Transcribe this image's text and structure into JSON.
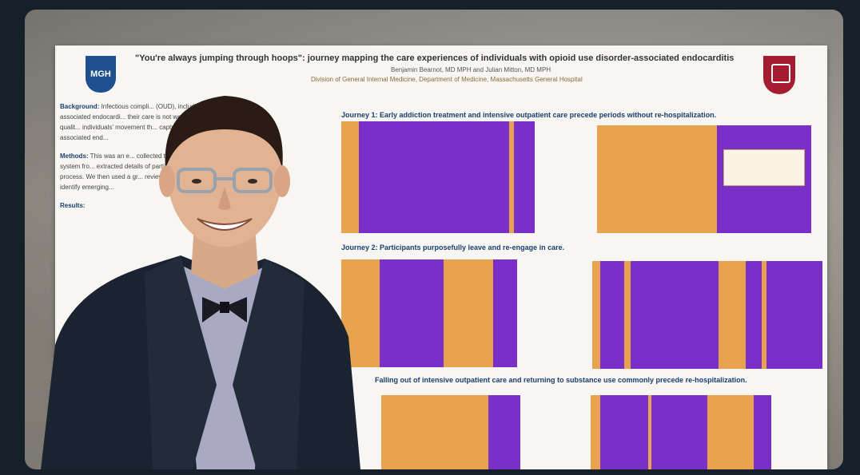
{
  "poster": {
    "title": "\"You're always jumping through hoops\": journey mapping the care experiences of individuals with opioid use disorder-associated endocarditis",
    "authors": "Benjamin Bearnot, MD MPH and Julian Mitton, MD MPH",
    "affiliation": "Division of General Internal Medicine, Department of Medicine, Massachusetts General Hospital",
    "logo_left": "MGH",
    "sections": [
      "Journey 1: Early addiction treatment and intensive outpatient care precede periods without re-hospitalization.",
      "Journey 2: Participants purposefully leave and re-engage in care.",
      "Falling out of intensive outpatient care and returning to substance use commonly precede re-hospitalization."
    ],
    "left_column": {
      "background_head": "Background:",
      "background_text": "Infectious compli... (OUD), including endocardi... OUD-associated endocardi... their care is not well unde... journey mapping, a qualit... individuals' movement th... capture common trajecto... with OUD-associated end...",
      "methods_head": "Methods:",
      "methods_text": "This was an e... collected through intervi... a single health system fro... extracted details of partic... were displayed and modifi... process. We then used a gr... reviewing the maps to ide... care and identify emerging...",
      "results_head": "Results:"
    }
  },
  "colors": {
    "purple": "#7a2fc8",
    "orange": "#e9a24e",
    "poster_bg": "#f7f6f2",
    "wall": "#9a958c"
  }
}
